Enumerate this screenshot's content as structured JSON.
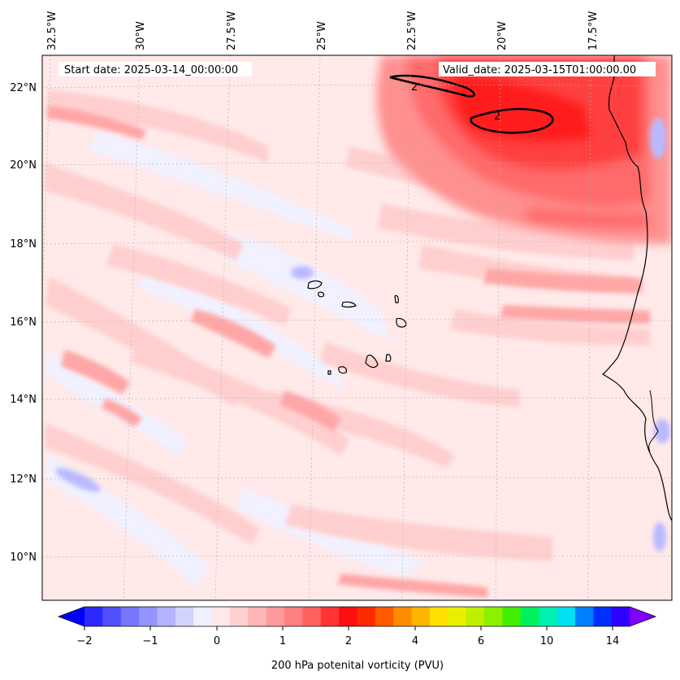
{
  "header": {
    "start_date": "Start date: 2025-03-14_00:00:00",
    "valid_date": "Valid_date: 2025-03-15T01:00:00.00"
  },
  "lon_labels": [
    "32.5°W",
    "30°W",
    "27.5°W",
    "25°W",
    "22.5°W",
    "20°W",
    "17.5°W"
  ],
  "lat_labels": [
    "22°N",
    "20°N",
    "18°N",
    "16°N",
    "14°N",
    "12°N",
    "10°N"
  ],
  "contour_labels": [
    "2",
    "2"
  ],
  "colorbar": {
    "label": "200 hPa potenital vorticity (PVU)",
    "ticks": [
      "−2",
      "−1",
      "0",
      "1",
      "2",
      "4",
      "6",
      "10",
      "14"
    ],
    "colors": [
      "#0000ff",
      "#2a2aff",
      "#5050ff",
      "#7676ff",
      "#9494ff",
      "#b3b3ff",
      "#d2d2ff",
      "#efefff",
      "#ffe8e8",
      "#ffd0d0",
      "#ffb5b5",
      "#ff9a9a",
      "#ff7e7e",
      "#ff6060",
      "#ff3535",
      "#ff1010",
      "#ff2a00",
      "#ff5a00",
      "#ff8c00",
      "#ffb400",
      "#ffe000",
      "#e8f000",
      "#bdf000",
      "#8cf000",
      "#40f000",
      "#00f060",
      "#00f0b0",
      "#00e0f0",
      "#0080ff",
      "#0030ff",
      "#3000ff",
      "#8000ff"
    ]
  },
  "colors": {
    "background_field": "#ffe9e9",
    "coast": "#000000"
  }
}
